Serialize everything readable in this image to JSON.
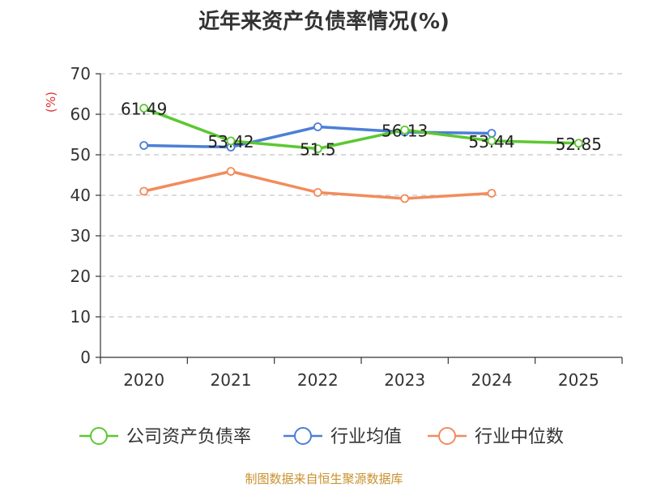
{
  "chart_data": {
    "type": "line",
    "title": "近年来资产负债率情况(%)",
    "ylabel": "(%)",
    "ylim": [
      0,
      70
    ],
    "yticks": [
      0,
      10,
      20,
      30,
      40,
      50,
      60,
      70
    ],
    "grid": true,
    "legend_position": "bottom",
    "categories": [
      "2020",
      "2021",
      "2022",
      "2023",
      "2024",
      "2025"
    ],
    "series": [
      {
        "name": "公司资产负债率",
        "color": "#5cc832",
        "values": [
          61.49,
          53.42,
          51.5,
          56.13,
          53.44,
          52.85
        ],
        "labels": [
          "61.49",
          "53.42",
          "51.5",
          "56.13",
          "53.44",
          "52.85"
        ]
      },
      {
        "name": "行业均值",
        "color": "#4c7fd6",
        "values": [
          52.3,
          51.9,
          56.9,
          55.6,
          55.3,
          null
        ]
      },
      {
        "name": "行业中位数",
        "color": "#f28c5c",
        "values": [
          41.0,
          45.9,
          40.7,
          39.2,
          40.5,
          null
        ]
      }
    ]
  },
  "footer": {
    "source": "制图数据来自恒生聚源数据库"
  }
}
